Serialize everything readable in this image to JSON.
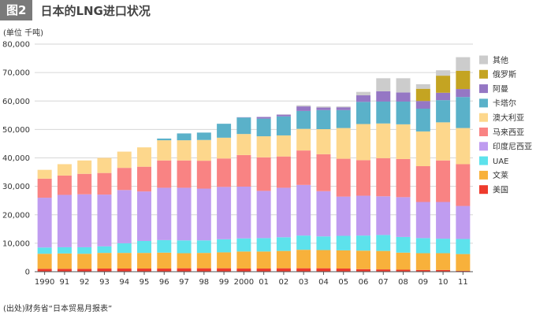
{
  "header": {
    "figure_badge": "图2",
    "title": "日本的LNG进口状况"
  },
  "unit_label": "(单位 千吨)",
  "source_note": "(出处)财务省“日本贸易月报表”",
  "chart_data": {
    "type": "bar",
    "stacked": true,
    "title": "日本的LNG进口状况",
    "xlabel": "",
    "ylabel": "千吨",
    "ylim": [
      0,
      80000
    ],
    "yticks": [
      0,
      10000,
      20000,
      30000,
      40000,
      50000,
      60000,
      70000,
      80000
    ],
    "ytick_labels": [
      "0",
      "10,000",
      "20,000",
      "30,000",
      "40,000",
      "50,000",
      "60,000",
      "70,000",
      "80,000"
    ],
    "categories": [
      "1990",
      "91",
      "92",
      "93",
      "94",
      "95",
      "96",
      "97",
      "98",
      "99",
      "2000",
      "01",
      "02",
      "03",
      "04",
      "05",
      "06",
      "07",
      "08",
      "09",
      "10",
      "11"
    ],
    "grid": true,
    "legend_position": "top-right",
    "series": [
      {
        "name": "美国",
        "color": "#ee3b2d",
        "values": [
          1000,
          1000,
          1000,
          1100,
          1100,
          1100,
          1100,
          1200,
          1200,
          1200,
          1100,
          1100,
          1200,
          1200,
          1200,
          1100,
          900,
          800,
          700,
          600,
          600,
          300
        ]
      },
      {
        "name": "文莱",
        "color": "#f8b13b",
        "values": [
          5300,
          5400,
          5300,
          5500,
          5500,
          5500,
          5600,
          5300,
          5400,
          5600,
          6000,
          6000,
          6100,
          6500,
          6400,
          6400,
          6500,
          6500,
          6000,
          5900,
          5900,
          5900
        ]
      },
      {
        "name": "UAE",
        "color": "#5de2ec",
        "values": [
          2200,
          2200,
          2300,
          2300,
          3400,
          4200,
          4400,
          4500,
          4400,
          4600,
          4600,
          4700,
          4800,
          5000,
          4800,
          5100,
          5300,
          5600,
          5500,
          5300,
          5100,
          5300
        ]
      },
      {
        "name": "印度尼西亚",
        "color": "#bf9cf0",
        "values": [
          17500,
          18400,
          18600,
          18200,
          18700,
          17400,
          18400,
          18500,
          18200,
          18400,
          18200,
          16600,
          17400,
          17800,
          15900,
          13800,
          14000,
          13600,
          14000,
          12700,
          12900,
          11600
        ]
      },
      {
        "name": "马来西亚",
        "color": "#f98383",
        "values": [
          6700,
          6800,
          7200,
          7600,
          7800,
          8700,
          9600,
          9600,
          9800,
          10000,
          11100,
          11800,
          11000,
          12100,
          13000,
          13300,
          12500,
          13400,
          13400,
          12600,
          14600,
          14700
        ]
      },
      {
        "name": "澳大利亚",
        "color": "#fdd78c",
        "values": [
          3100,
          4000,
          4700,
          5300,
          5700,
          6800,
          7100,
          7100,
          7300,
          7300,
          7400,
          7400,
          7400,
          7600,
          8800,
          10800,
          12700,
          12200,
          12200,
          12200,
          13400,
          12700
        ]
      },
      {
        "name": "卡塔尔",
        "color": "#5ab1c9",
        "values": [
          0,
          0,
          0,
          0,
          0,
          0,
          600,
          2400,
          2600,
          4900,
          5800,
          6200,
          6700,
          6300,
          6700,
          6300,
          7800,
          7700,
          8000,
          8000,
          7800,
          10900
        ]
      },
      {
        "name": "阿曼",
        "color": "#9577c4",
        "values": [
          0,
          0,
          0,
          0,
          0,
          0,
          0,
          0,
          0,
          0,
          100,
          600,
          600,
          1600,
          900,
          1000,
          2300,
          3600,
          3200,
          2700,
          2600,
          2800
        ]
      },
      {
        "name": "俄罗斯",
        "color": "#c4a422",
        "values": [
          0,
          0,
          0,
          0,
          0,
          0,
          0,
          0,
          0,
          0,
          0,
          0,
          0,
          0,
          0,
          0,
          0,
          0,
          0,
          4300,
          6000,
          6400
        ]
      },
      {
        "name": "其他",
        "color": "#cccccc",
        "values": [
          0,
          0,
          0,
          0,
          0,
          0,
          0,
          0,
          0,
          0,
          0,
          0,
          100,
          400,
          400,
          300,
          1200,
          4600,
          5000,
          1600,
          1900,
          4800
        ]
      }
    ]
  }
}
